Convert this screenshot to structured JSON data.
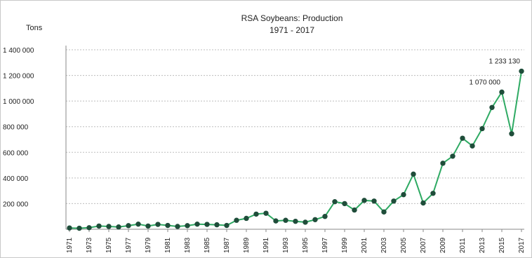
{
  "chart_data": {
    "type": "line",
    "title": "RSA Soybeans: Production",
    "subtitle": "1971 - 2017",
    "ylabel": "Tons",
    "xlabel": "",
    "ylim": [
      0,
      1400000
    ],
    "yticks": [
      200000,
      400000,
      600000,
      800000,
      1000000,
      1200000,
      1400000
    ],
    "ytick_labels": [
      "200 000",
      "400 000",
      "600 000",
      "800 000",
      "1 000 000",
      "1 200 000",
      "1 400 000"
    ],
    "grid": true,
    "legend": "none",
    "line_color": "#2eaa63",
    "marker_color": "#1f4d3a",
    "x": [
      1971,
      1972,
      1973,
      1974,
      1975,
      1976,
      1977,
      1978,
      1979,
      1980,
      1981,
      1982,
      1983,
      1984,
      1985,
      1986,
      1987,
      1988,
      1989,
      1990,
      1991,
      1992,
      1993,
      1994,
      1995,
      1996,
      1997,
      1998,
      1999,
      2000,
      2001,
      2002,
      2003,
      2004,
      2005,
      2006,
      2007,
      2008,
      2009,
      2010,
      2011,
      2012,
      2013,
      2014,
      2015,
      2016,
      2017
    ],
    "x_tick_labels": [
      "1971",
      "1973",
      "1975",
      "1977",
      "1979",
      "1981",
      "1983",
      "1985",
      "1987",
      "1989",
      "1991",
      "1993",
      "1995",
      "1997",
      "1999",
      "2001",
      "2003",
      "2005",
      "2007",
      "2009",
      "2011",
      "2013",
      "2015",
      "2017"
    ],
    "series": [
      {
        "values": [
          10000,
          8000,
          12000,
          25000,
          22000,
          18000,
          28000,
          40000,
          25000,
          38000,
          30000,
          22000,
          28000,
          40000,
          38000,
          35000,
          30000,
          70000,
          85000,
          118000,
          125000,
          65000,
          70000,
          62000,
          55000,
          75000,
          100000,
          215000,
          200000,
          150000,
          225000,
          220000,
          135000,
          220000,
          270000,
          430000,
          205000,
          280000,
          515000,
          570000,
          710000,
          650000,
          785000,
          950000,
          1070000,
          745000,
          1233130
        ]
      }
    ],
    "annotations": [
      {
        "x": 2015,
        "text": "1 070 000"
      },
      {
        "x": 2017,
        "text": "1 233 130"
      }
    ]
  }
}
